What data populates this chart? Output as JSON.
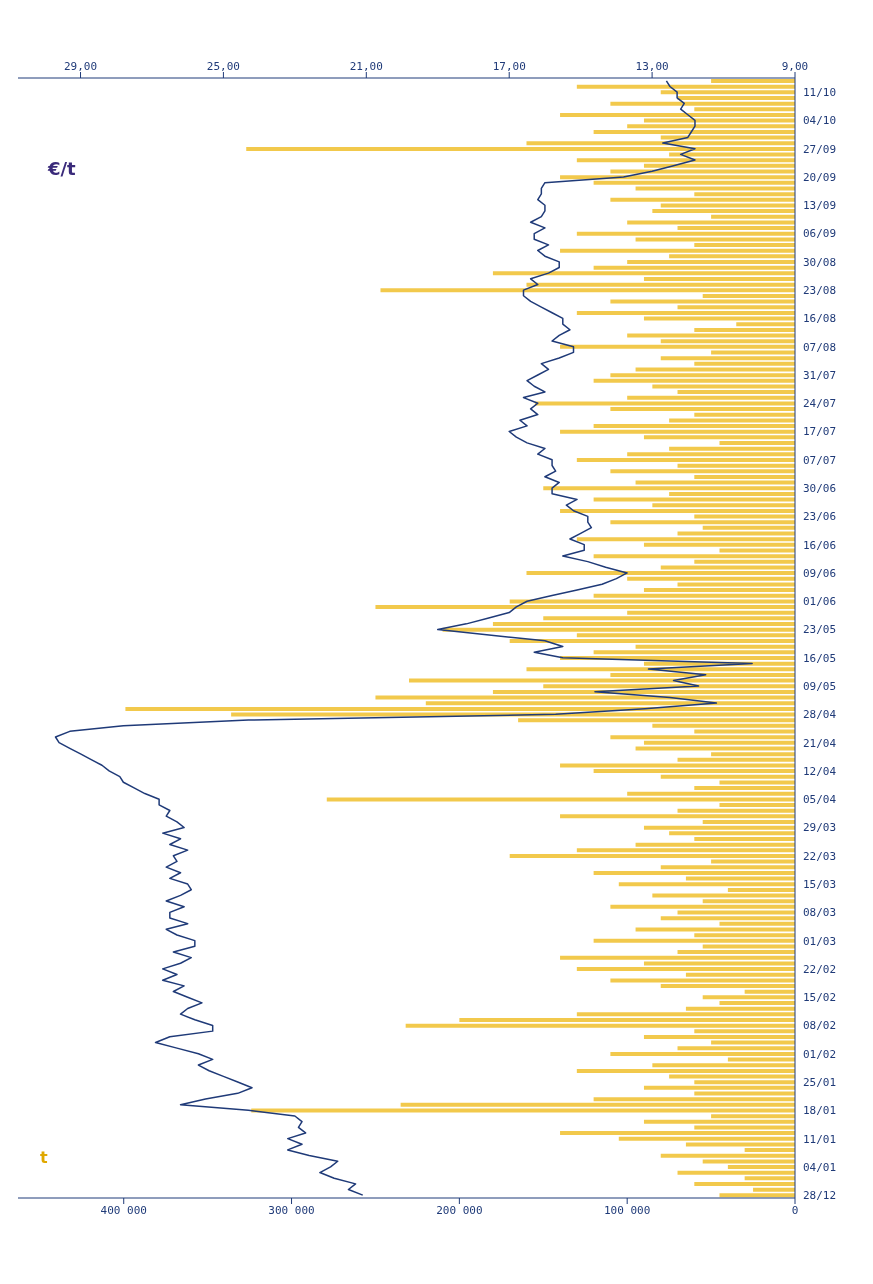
{
  "chart_data": {
    "type": "bar",
    "orientation": "horizontal",
    "xlabel": "t",
    "x2label": "€/t",
    "categories": [
      null,
      null,
      "11/10",
      null,
      null,
      null,
      null,
      "04/10",
      null,
      null,
      null,
      null,
      "27/09",
      null,
      null,
      null,
      null,
      "20/09",
      null,
      null,
      null,
      null,
      "13/09",
      null,
      null,
      null,
      null,
      "06/09",
      null,
      null,
      null,
      null,
      "30/08",
      null,
      null,
      null,
      null,
      "23/08",
      null,
      null,
      null,
      null,
      "16/08",
      null,
      null,
      null,
      null,
      "07/08",
      null,
      null,
      null,
      null,
      "31/07",
      null,
      null,
      null,
      null,
      "24/07",
      null,
      null,
      null,
      null,
      "17/07",
      null,
      null,
      null,
      null,
      "07/07",
      null,
      null,
      null,
      null,
      "30/06",
      null,
      null,
      null,
      null,
      "23/06",
      null,
      null,
      null,
      null,
      "16/06",
      null,
      null,
      null,
      null,
      "09/06",
      null,
      null,
      null,
      null,
      "01/06",
      null,
      null,
      null,
      null,
      "23/05",
      null,
      null,
      null,
      null,
      "16/05",
      null,
      null,
      null,
      null,
      "09/05",
      null,
      null,
      null,
      null,
      "28/04",
      null,
      null,
      null,
      null,
      "21/04",
      null,
      null,
      null,
      null,
      "12/04",
      null,
      null,
      null,
      null,
      "05/04",
      null,
      null,
      null,
      null,
      "29/03",
      null,
      null,
      null,
      null,
      "22/03",
      null,
      null,
      null,
      null,
      "15/03",
      null,
      null,
      null,
      null,
      "08/03",
      null,
      null,
      null,
      null,
      "01/03",
      null,
      null,
      null,
      null,
      "22/02",
      null,
      null,
      null,
      null,
      "15/02",
      null,
      null,
      null,
      null,
      "08/02",
      null,
      null,
      null,
      null,
      "01/02",
      null,
      null,
      null,
      null,
      "25/01",
      null,
      null,
      null,
      null,
      "18/01",
      null,
      null,
      null,
      null,
      "11/01",
      null,
      null,
      null,
      null,
      "04/01",
      null,
      null,
      null,
      null,
      "28/12"
    ],
    "series": [
      {
        "color": "#f2c94c",
        "values": [
          50000,
          130000,
          80000,
          70000,
          110000,
          60000,
          140000,
          90000,
          100000,
          120000,
          80000,
          160000,
          327000,
          75000,
          130000,
          90000,
          110000,
          140000,
          120000,
          95000,
          60000,
          110000,
          80000,
          85000,
          50000,
          100000,
          70000,
          130000,
          95000,
          60000,
          140000,
          75000,
          100000,
          120000,
          180000,
          90000,
          160000,
          247000,
          55000,
          110000,
          70000,
          130000,
          90000,
          35000,
          60000,
          100000,
          80000,
          140000,
          50000,
          80000,
          60000,
          95000,
          110000,
          120000,
          85000,
          70000,
          100000,
          155000,
          110000,
          60000,
          75000,
          120000,
          140000,
          90000,
          45000,
          75000,
          100000,
          130000,
          70000,
          110000,
          60000,
          95000,
          150000,
          75000,
          120000,
          85000,
          140000,
          60000,
          110000,
          55000,
          70000,
          130000,
          90000,
          45000,
          120000,
          60000,
          80000,
          160000,
          100000,
          70000,
          90000,
          120000,
          170000,
          250000,
          100000,
          150000,
          180000,
          210000,
          130000,
          170000,
          95000,
          120000,
          140000,
          90000,
          160000,
          110000,
          230000,
          150000,
          180000,
          250000,
          220000,
          399000,
          336000,
          165000,
          85000,
          60000,
          110000,
          90000,
          95000,
          50000,
          70000,
          140000,
          120000,
          80000,
          45000,
          60000,
          100000,
          279000,
          45000,
          70000,
          140000,
          55000,
          90000,
          75000,
          60000,
          95000,
          130000,
          170000,
          50000,
          80000,
          120000,
          65000,
          105000,
          40000,
          85000,
          55000,
          110000,
          70000,
          80000,
          45000,
          95000,
          60000,
          120000,
          55000,
          70000,
          140000,
          90000,
          130000,
          65000,
          110000,
          80000,
          30000,
          55000,
          45000,
          65000,
          130000,
          200000,
          232000,
          60000,
          90000,
          50000,
          70000,
          110000,
          40000,
          85000,
          130000,
          75000,
          60000,
          90000,
          60000,
          120000,
          235000,
          324000,
          50000,
          90000,
          60000,
          140000,
          105000,
          65000,
          30000,
          80000,
          55000,
          40000,
          70000,
          30000,
          60000,
          25000,
          45000
        ]
      },
      {
        "type": "line",
        "axis": "x2",
        "color": "#1f3a78",
        "values": [
          12.6,
          12.5,
          12.3,
          12.3,
          12.1,
          12.2,
          12.0,
          11.8,
          11.8,
          11.9,
          12.0,
          12.7,
          11.8,
          12.2,
          11.8,
          12.4,
          13.0,
          13.8,
          16.0,
          16.1,
          16.1,
          16.2,
          16.0,
          16.0,
          16.1,
          16.4,
          16.0,
          16.3,
          16.3,
          15.9,
          16.2,
          16.0,
          15.6,
          15.6,
          15.9,
          16.4,
          16.2,
          16.6,
          16.6,
          16.4,
          16.1,
          15.8,
          15.5,
          15.5,
          15.3,
          15.6,
          15.8,
          15.2,
          15.2,
          15.6,
          16.1,
          15.9,
          16.2,
          16.5,
          16.3,
          16.0,
          16.6,
          16.2,
          16.4,
          16.2,
          16.7,
          16.5,
          17.0,
          16.8,
          16.5,
          16.0,
          16.2,
          15.8,
          15.8,
          15.7,
          16.0,
          15.6,
          15.8,
          15.8,
          15.1,
          15.4,
          15.2,
          14.8,
          14.8,
          14.7,
          15.0,
          15.3,
          14.9,
          14.9,
          15.5,
          14.8,
          14.3,
          13.7,
          14.0,
          14.4,
          15.1,
          15.8,
          16.5,
          16.8,
          17.0,
          17.6,
          18.2,
          19.0,
          17.5,
          16.0,
          15.5,
          16.3,
          15.5,
          10.2,
          13.1,
          11.5,
          12.4,
          11.7,
          14.6,
          12.5,
          11.2,
          13.2,
          15.7,
          24.3,
          27.8,
          29.3,
          29.7,
          29.6,
          29.3,
          29.0,
          28.7,
          28.4,
          28.2,
          27.9,
          27.8,
          27.5,
          27.2,
          26.8,
          26.8,
          26.5,
          26.6,
          26.3,
          26.1,
          26.7,
          26.2,
          26.5,
          26.0,
          26.4,
          26.3,
          26.6,
          26.2,
          26.5,
          26.0,
          25.9,
          26.2,
          26.6,
          26.1,
          26.5,
          26.5,
          26.0,
          26.6,
          26.3,
          25.8,
          25.8,
          26.4,
          25.9,
          26.2,
          26.7,
          26.3,
          26.7,
          26.1,
          26.4,
          26.0,
          25.6,
          26.0,
          26.2,
          25.8,
          25.3,
          25.3,
          26.5,
          26.9,
          26.3,
          25.7,
          25.3,
          25.7,
          25.4,
          25.0,
          24.6,
          24.2,
          24.6,
          25.5,
          26.2,
          24.3,
          23.0,
          22.8,
          22.9,
          22.7,
          23.2,
          22.8,
          23.2,
          22.6,
          21.8,
          22.0,
          22.3,
          21.9,
          21.3,
          21.5,
          21.1
        ]
      }
    ],
    "xlim": [
      463000,
      0
    ],
    "xticks": [
      {
        "value": 400000,
        "label": "400 000"
      },
      {
        "value": 300000,
        "label": "300 000"
      },
      {
        "value": 200000,
        "label": "200 000"
      },
      {
        "value": 100000,
        "label": "100 000"
      },
      0
    ],
    "x2lim": [
      30.75,
      9
    ],
    "x2ticks": [
      {
        "value": 29,
        "label": "29,00"
      },
      {
        "value": 25,
        "label": "25,00"
      },
      {
        "value": 21,
        "label": "21,00"
      },
      {
        "value": 17,
        "label": "17,00"
      },
      {
        "value": 13,
        "label": "13,00"
      },
      {
        "value": 9,
        "label": "9,00"
      }
    ]
  }
}
